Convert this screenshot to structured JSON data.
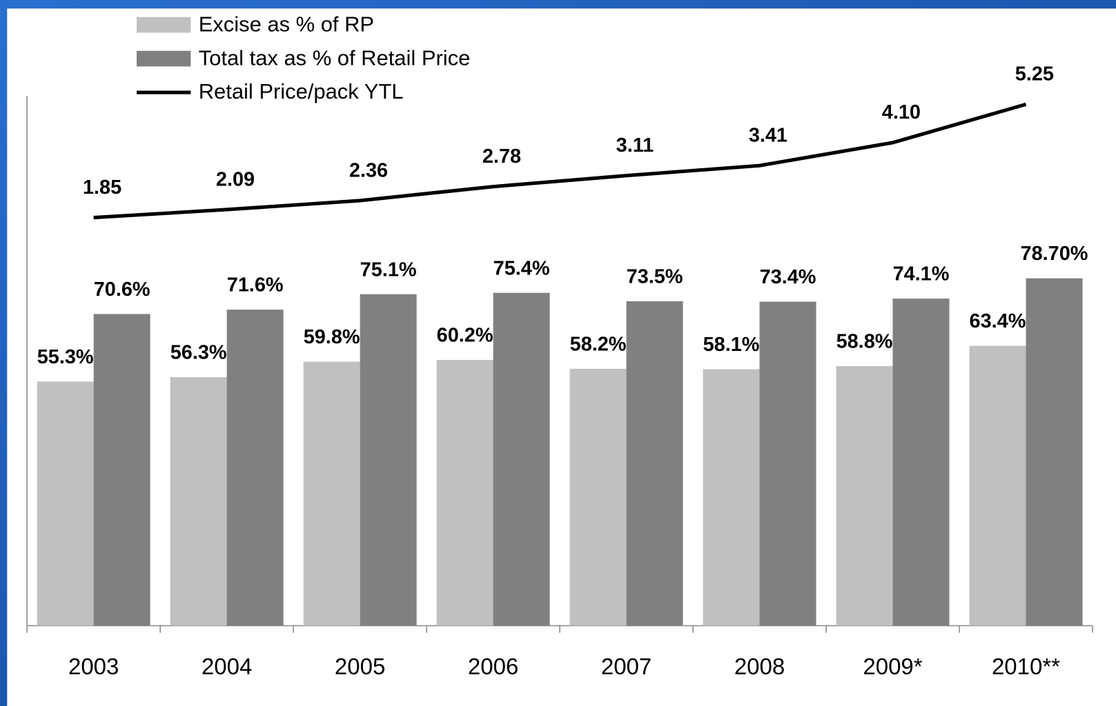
{
  "chart_data": {
    "type": "bar",
    "categories": [
      "2003",
      "2004",
      "2005",
      "2006",
      "2007",
      "2008",
      "2009*",
      "2010**"
    ],
    "series": [
      {
        "name": "Excise as % of RP",
        "type": "bar",
        "color": "#c0c0c0",
        "values": [
          55.3,
          56.3,
          59.8,
          60.2,
          58.2,
          58.1,
          58.8,
          63.4
        ],
        "value_labels": [
          "55.3%",
          "56.3%",
          "59.8%",
          "60.2%",
          "58.2%",
          "58.1%",
          "58.8%",
          "63.4%"
        ]
      },
      {
        "name": "Total tax as % of Retail Price",
        "type": "bar",
        "color": "#808080",
        "values": [
          70.6,
          71.6,
          75.1,
          75.4,
          73.5,
          73.4,
          74.1,
          78.7
        ],
        "value_labels": [
          "70.6%",
          "71.6%",
          "75.1%",
          "75.4%",
          "73.5%",
          "73.4%",
          "74.1%",
          "78.70%"
        ]
      },
      {
        "name": "Retail Price/pack YTL",
        "type": "line",
        "axis": "y2",
        "color": "#000000",
        "values": [
          1.85,
          2.09,
          2.36,
          2.78,
          3.11,
          3.41,
          4.1,
          5.25
        ],
        "value_labels": [
          "1.85",
          "2.09",
          "2.36",
          "2.78",
          "3.11",
          "3.41",
          "4.10",
          "5.25"
        ]
      }
    ],
    "ylim": [
      0,
      120
    ],
    "y2lim": [
      -10.4,
      5.5
    ],
    "legend": "top-left"
  }
}
